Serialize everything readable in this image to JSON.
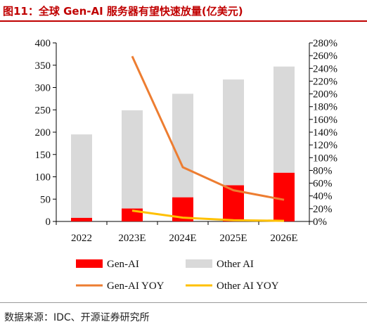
{
  "title": "图11：全球 Gen-AI 服务器有望快速放量(亿美元)",
  "source": "数据来源：IDC、开源证券研究所",
  "colors": {
    "title": "#c00000",
    "gen_ai_bar": "#ff0000",
    "other_ai_bar": "#d9d9d9",
    "gen_ai_yoy_line": "#ed7d31",
    "other_ai_yoy_line": "#ffc000"
  },
  "chart_data": {
    "type": "bar",
    "stacked": true,
    "categories": [
      "2022",
      "2023E",
      "2024E",
      "2025E",
      "2026E"
    ],
    "series": [
      {
        "name": "Gen-AI",
        "type": "bar",
        "axis": "left",
        "values": [
          8,
          29,
          54,
          81,
          109
        ]
      },
      {
        "name": "Other AI",
        "type": "bar",
        "axis": "left",
        "values": [
          187,
          220,
          232,
          237,
          238
        ]
      },
      {
        "name": "Gen-AI YOY",
        "type": "line",
        "axis": "right",
        "values": [
          null,
          2.59,
          0.85,
          0.49,
          0.34
        ]
      },
      {
        "name": "Other AI YOY",
        "type": "line",
        "axis": "right",
        "values": [
          null,
          0.17,
          0.06,
          0.02,
          0.01
        ]
      }
    ],
    "ylim_left": [
      0,
      400
    ],
    "yticks_left": [
      "0",
      "50",
      "100",
      "150",
      "200",
      "250",
      "300",
      "350",
      "400"
    ],
    "ylim_right": [
      0,
      2.8
    ],
    "yticks_right": [
      "0%",
      "20%",
      "40%",
      "60%",
      "80%",
      "100%",
      "120%",
      "140%",
      "160%",
      "180%",
      "200%",
      "220%",
      "240%",
      "260%",
      "280%"
    ],
    "legend_position": "bottom",
    "grid": false
  }
}
